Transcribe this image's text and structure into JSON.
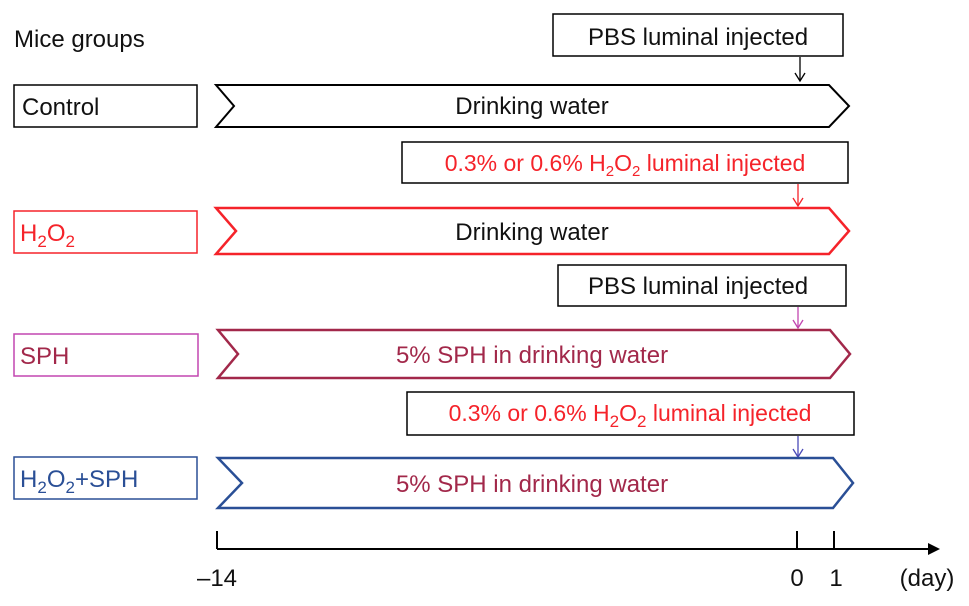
{
  "header": {
    "title": "Mice groups"
  },
  "colors": {
    "control": "#000000",
    "h2o2": "#f5232a",
    "sph": "#a2284a",
    "h2o2_sph": "#2a4f96",
    "sph_text": "#a2284a",
    "injection_arrow_sph": "#c246b0",
    "injection_arrow_h2o2_sph": "#4a4ab8"
  },
  "groups": [
    {
      "label": {
        "base": "Control",
        "sub1": "",
        "mid": "",
        "sub2": "",
        "tail": ""
      },
      "arrow_text": "Drinking water",
      "injection": {
        "text": "PBS luminal injected",
        "sub1": "",
        "mid": "",
        "sub2": "",
        "tail": ""
      }
    },
    {
      "label": {
        "base": "H",
        "sub1": "2",
        "mid": "O",
        "sub2": "2",
        "tail": ""
      },
      "arrow_text": "Drinking water",
      "injection": {
        "text": "0.3% or 0.6% H",
        "sub1": "2",
        "mid": "O",
        "sub2": "2",
        "tail": " luminal injected"
      }
    },
    {
      "label": {
        "base": "SPH",
        "sub1": "",
        "mid": "",
        "sub2": "",
        "tail": ""
      },
      "arrow_text": "5% SPH in drinking water",
      "injection": {
        "text": "PBS luminal injected",
        "sub1": "",
        "mid": "",
        "sub2": "",
        "tail": ""
      }
    },
    {
      "label": {
        "base": "H",
        "sub1": "2",
        "mid": "O",
        "sub2": "2",
        "tail": "+SPH"
      },
      "arrow_text": "5% SPH in drinking water",
      "injection": {
        "text": "0.3% or 0.6% H",
        "sub1": "2",
        "mid": "O",
        "sub2": "2",
        "tail": " luminal injected"
      }
    }
  ],
  "timeline": {
    "ticks": [
      "–14",
      "0",
      "1"
    ],
    "unit": "(day)"
  }
}
